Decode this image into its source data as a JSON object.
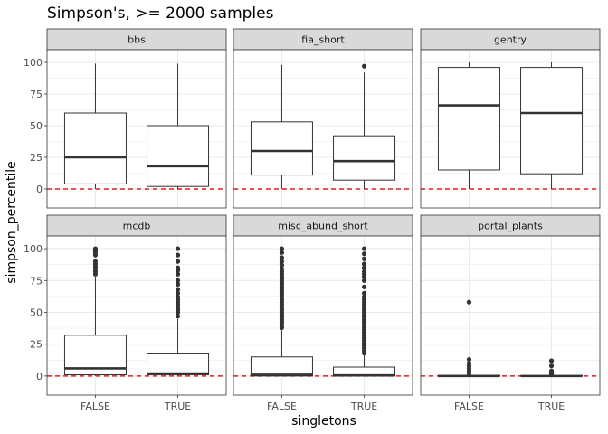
{
  "chart_data": {
    "type": "boxplot",
    "title": "Simpson's, >= 2000 samples",
    "xlabel": "singletons",
    "ylabel": "simpson_percentile",
    "categories": [
      "FALSE",
      "TRUE"
    ],
    "yticks": [
      0,
      25,
      50,
      75,
      100
    ],
    "ylim": [
      -15,
      110
    ],
    "grid": true,
    "reference_line": {
      "y": 0,
      "color": "#e41a1c",
      "style": "dashed"
    },
    "colors": {
      "box_stroke": "#333333",
      "strip_fill": "#d9d9d9",
      "grid": "#ebebeb",
      "panel_border": "#333333"
    },
    "panels": [
      {
        "name": "bbs",
        "boxes": [
          {
            "category": "FALSE",
            "whisker_low": 0,
            "q1": 4,
            "median": 25,
            "q3": 60,
            "whisker_high": 99,
            "outliers": []
          },
          {
            "category": "TRUE",
            "whisker_low": 0,
            "q1": 2,
            "median": 18,
            "q3": 50,
            "whisker_high": 99,
            "outliers": []
          }
        ]
      },
      {
        "name": "fia_short",
        "boxes": [
          {
            "category": "FALSE",
            "whisker_low": 0,
            "q1": 11,
            "median": 30,
            "q3": 53,
            "whisker_high": 98,
            "outliers": []
          },
          {
            "category": "TRUE",
            "whisker_low": 0,
            "q1": 7,
            "median": 22,
            "q3": 42,
            "whisker_high": 92,
            "outliers": [
              97
            ]
          }
        ]
      },
      {
        "name": "gentry",
        "boxes": [
          {
            "category": "FALSE",
            "whisker_low": 0,
            "q1": 15,
            "median": 66,
            "q3": 96,
            "whisker_high": 100,
            "outliers": []
          },
          {
            "category": "TRUE",
            "whisker_low": 0,
            "q1": 12,
            "median": 60,
            "q3": 96,
            "whisker_high": 100,
            "outliers": []
          }
        ]
      },
      {
        "name": "mcdb",
        "boxes": [
          {
            "category": "FALSE",
            "whisker_low": 0,
            "q1": 1,
            "median": 6,
            "q3": 32,
            "whisker_high": 78,
            "outliers": [
              80,
              82,
              84,
              86,
              88,
              90,
              95,
              97,
              98,
              100
            ]
          },
          {
            "category": "TRUE",
            "whisker_low": 0,
            "q1": 1,
            "median": 2,
            "q3": 18,
            "whisker_high": 45,
            "outliers": [
              47,
              50,
              52,
              54,
              56,
              58,
              60,
              62,
              65,
              68,
              72,
              75,
              80,
              83,
              85,
              90,
              95,
              100
            ]
          }
        ]
      },
      {
        "name": "misc_abund_short",
        "boxes": [
          {
            "category": "FALSE",
            "whisker_low": 0,
            "q1": 0,
            "median": 1,
            "q3": 15,
            "whisker_high": 36,
            "outliers": [
              38,
              40,
              42,
              44,
              46,
              48,
              50,
              52,
              54,
              56,
              58,
              60,
              62,
              64,
              66,
              68,
              70,
              72,
              74,
              76,
              78,
              80,
              82,
              84,
              87,
              90,
              93,
              97,
              100
            ]
          },
          {
            "category": "TRUE",
            "whisker_low": 0,
            "q1": 0,
            "median": 0.5,
            "q3": 7,
            "whisker_high": 17,
            "outliers": [
              18,
              20,
              22,
              24,
              26,
              28,
              30,
              32,
              34,
              36,
              38,
              40,
              42,
              44,
              46,
              48,
              50,
              52,
              54,
              56,
              58,
              60,
              62,
              65,
              70,
              75,
              78,
              80,
              82,
              85,
              88,
              92,
              96,
              100
            ]
          }
        ]
      },
      {
        "name": "portal_plants",
        "boxes": [
          {
            "category": "FALSE",
            "whisker_low": 0,
            "q1": 0,
            "median": 0,
            "q3": 0.5,
            "whisker_high": 1,
            "outliers": [
              2,
              4,
              6,
              8,
              10,
              13,
              58
            ]
          },
          {
            "category": "TRUE",
            "whisker_low": 0,
            "q1": 0,
            "median": 0,
            "q3": 0.3,
            "whisker_high": 0.5,
            "outliers": [
              1,
              2,
              3,
              4,
              8,
              12
            ]
          }
        ]
      }
    ]
  }
}
